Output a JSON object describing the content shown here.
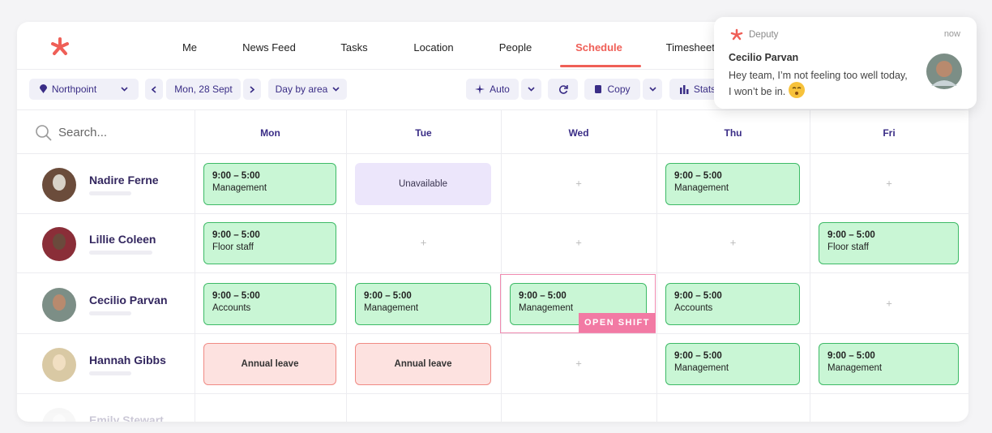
{
  "nav": {
    "items": [
      "Me",
      "News Feed",
      "Tasks",
      "Location",
      "People",
      "Schedule",
      "Timesheets"
    ],
    "active": 5
  },
  "toolbar": {
    "location": "Northpoint",
    "date": "Mon, 28 Sept",
    "view": "Day by area",
    "auto": "Auto",
    "copy": "Copy",
    "stats": "Stats"
  },
  "search": "Search...",
  "days": [
    "Mon",
    "Tue",
    "Wed",
    "Thu",
    "Fri"
  ],
  "rows": [
    {
      "name": "Nadire Ferne",
      "cells": [
        {
          "time": "9:00 – 5:00",
          "role": "Management"
        },
        {
          "status": "Unavailable",
          "color": "#ece6fb"
        },
        null,
        {
          "time": "9:00 – 5:00",
          "role": "Management"
        },
        null
      ]
    },
    {
      "name": "Lillie Coleen",
      "cells": [
        {
          "time": "9:00 – 5:00",
          "role": "Floor staff"
        },
        null,
        null,
        null,
        {
          "time": "9:00 – 5:00",
          "role": "Floor staff"
        }
      ]
    },
    {
      "name": "Cecilio Parvan",
      "cells": [
        {
          "time": "9:00 – 5:00",
          "role": "Accounts"
        },
        {
          "time": "9:00 – 5:00",
          "role": "Management"
        },
        {
          "time": "9:00 – 5:00",
          "role": "Management",
          "badge": "OPEN SHIFT"
        },
        {
          "time": "9:00 – 5:00",
          "role": "Accounts"
        },
        null
      ]
    },
    {
      "name": "Hannah Gibbs",
      "cells": [
        {
          "status": "Annual leave",
          "color": "#fde2e0"
        },
        {
          "status": "Annual leave",
          "color": "#fde2e0"
        },
        null,
        {
          "time": "9:00 – 5:00",
          "role": "Management"
        },
        {
          "time": "9:00 – 5:00",
          "role": "Management"
        }
      ]
    },
    {
      "name": "Emily Stewart",
      "cells": [
        null,
        null,
        null,
        null,
        null
      ]
    }
  ],
  "notification": {
    "app": "Deputy",
    "time": "now",
    "sender": "Cecilio Parvan",
    "message": "Hey team, I’m not feeling too well today, I won’t be in."
  }
}
